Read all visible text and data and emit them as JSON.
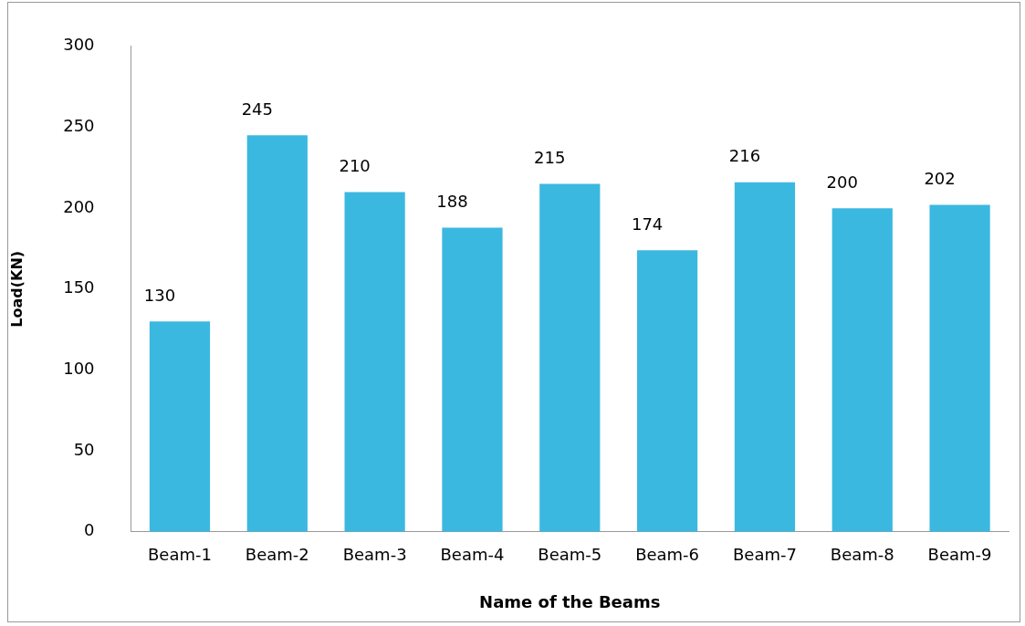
{
  "chart_data": {
    "type": "bar",
    "xlabel": "Name of the Beams",
    "ylabel": "Load(KN)",
    "categories": [
      "Beam-1",
      "Beam-2",
      "Beam-3",
      "Beam-4",
      "Beam-5",
      "Beam-6",
      "Beam-7",
      "Beam-8",
      "Beam-9"
    ],
    "values": [
      130,
      245,
      210,
      188,
      215,
      174,
      216,
      200,
      202
    ],
    "color": "#3bb8e0",
    "ylim": [
      0,
      300
    ],
    "yticks": [
      0,
      50,
      100,
      150,
      200,
      250,
      300
    ],
    "grid": false,
    "legend": false,
    "data_labels": true
  }
}
